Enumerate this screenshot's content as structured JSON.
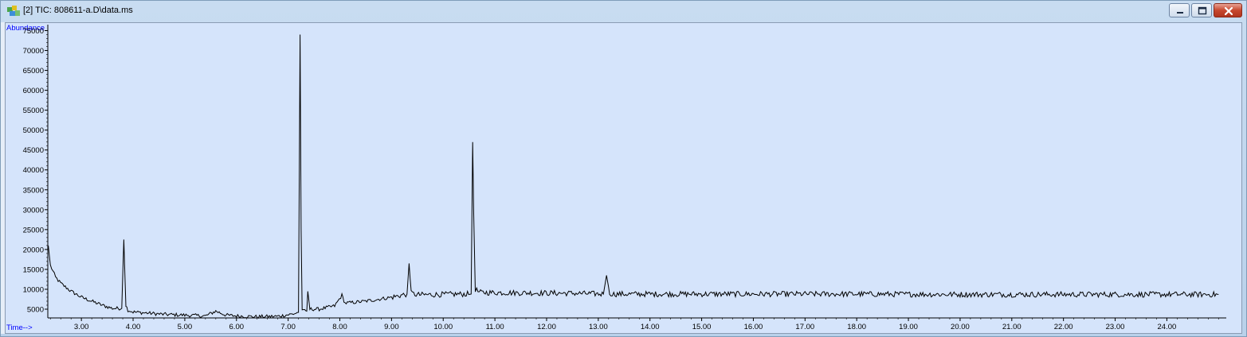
{
  "window": {
    "title": "[2] TIC: 808611-a.D\\data.ms",
    "icon": "chromatogram-app-icon",
    "controls": [
      "minimize",
      "maximize",
      "close"
    ]
  },
  "chart_data": {
    "type": "line",
    "xlabel": "Time-->",
    "ylabel": "Abundance",
    "xlim": [
      2.35,
      25.15
    ],
    "ylim": [
      2800,
      76500
    ],
    "y_ticks": [
      5000,
      10000,
      15000,
      20000,
      25000,
      30000,
      35000,
      40000,
      45000,
      50000,
      55000,
      60000,
      65000,
      70000,
      75000
    ],
    "x_ticks": [
      "3.00",
      "4.00",
      "5.00",
      "6.00",
      "7.00",
      "8.00",
      "9.00",
      "10.00",
      "11.00",
      "12.00",
      "13.00",
      "14.00",
      "15.00",
      "16.00",
      "17.00",
      "18.00",
      "19.00",
      "20.00",
      "21.00",
      "22.00",
      "23.00",
      "24.00"
    ],
    "grid": false,
    "series": [
      {
        "color": "#000000",
        "x": [
          2.36,
          2.4,
          2.5,
          2.6,
          2.8,
          3.0,
          3.2,
          3.4,
          3.6,
          3.78,
          3.82,
          3.84,
          3.86,
          3.9,
          4.0,
          4.3,
          4.6,
          5.0,
          5.4,
          5.6,
          5.8,
          6.0,
          6.4,
          6.8,
          7.1,
          7.2,
          7.23,
          7.25,
          7.27,
          7.3,
          7.36,
          7.38,
          7.42,
          7.6,
          7.9,
          8.04,
          8.1,
          8.5,
          9.0,
          9.3,
          9.34,
          9.38,
          9.5,
          10.0,
          10.4,
          10.54,
          10.57,
          10.59,
          10.62,
          10.7,
          11.5,
          12.5,
          13.1,
          13.16,
          13.22,
          13.3,
          14.5,
          16.0,
          18.0,
          20.0,
          22.0,
          24.0,
          25.0
        ],
        "y": [
          21000,
          16000,
          13000,
          11500,
          9500,
          8000,
          7000,
          6000,
          5200,
          5200,
          22500,
          14000,
          6000,
          4800,
          4300,
          4000,
          3700,
          3500,
          3300,
          4500,
          3500,
          3300,
          3100,
          3200,
          3800,
          4200,
          74000,
          25000,
          5000,
          4500,
          4500,
          9500,
          5000,
          5000,
          5800,
          8500,
          6500,
          7000,
          8000,
          8800,
          16500,
          9000,
          8600,
          8700,
          8800,
          8800,
          47000,
          29000,
          10000,
          9200,
          9100,
          9000,
          8800,
          13500,
          9000,
          8800,
          8800,
          8800,
          8800,
          8700,
          8700,
          8700,
          8700
        ]
      }
    ]
  }
}
